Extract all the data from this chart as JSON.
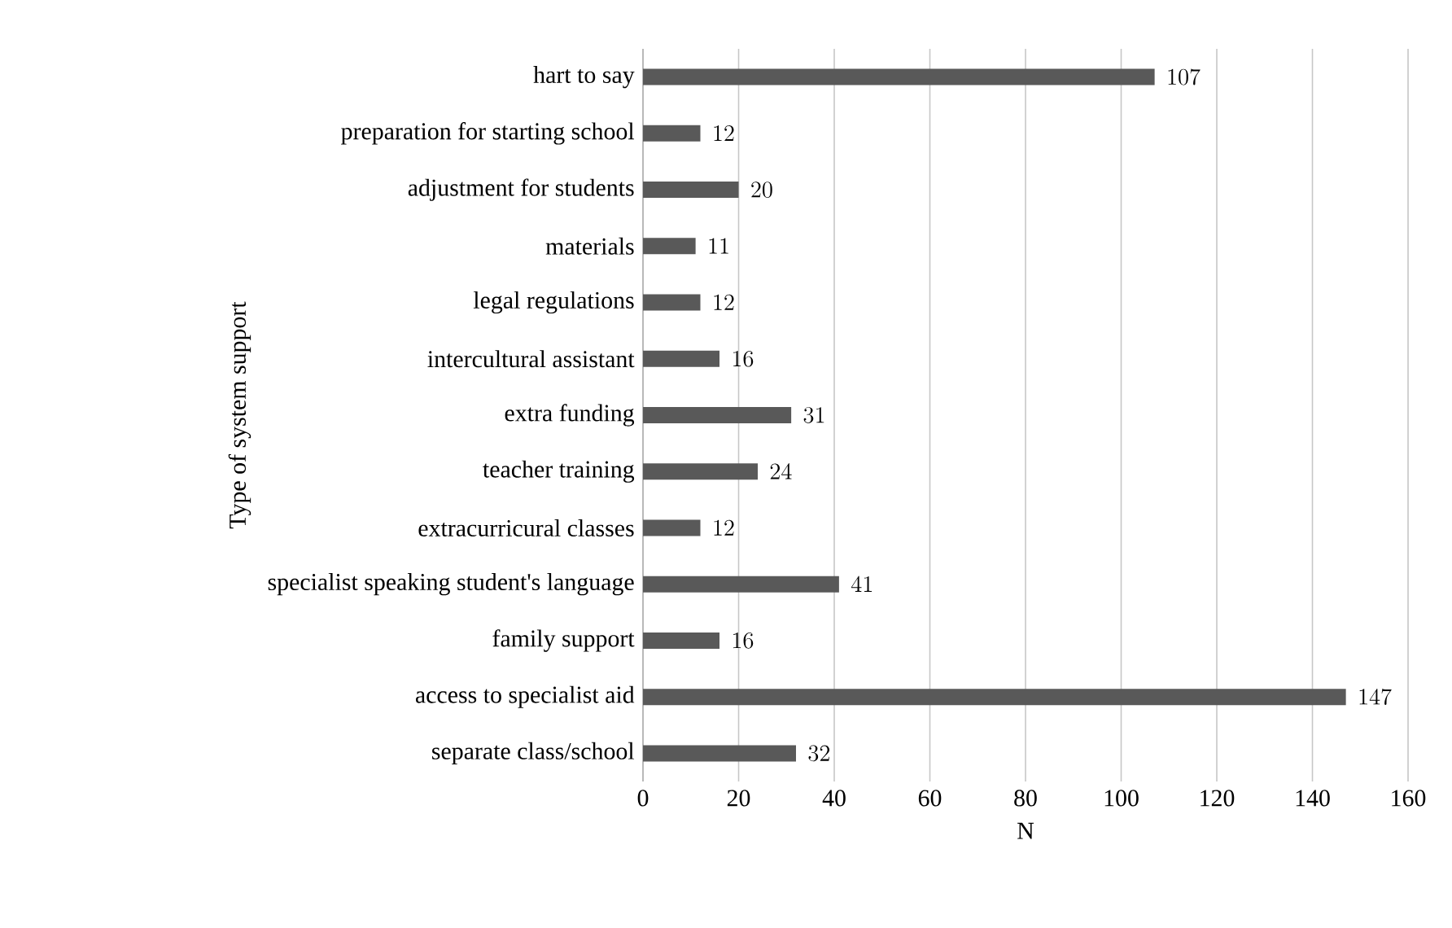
{
  "chart_data": {
    "type": "bar",
    "orientation": "horizontal",
    "xlabel": "N",
    "ylabel": "Type of system support",
    "categories": [
      "hart to say",
      "preparation for starting school",
      "adjustment for students",
      "materials",
      "legal regulations",
      "intercultural assistant",
      "extra funding",
      "teacher training",
      "extracurricural classes",
      "specialist speaking student's language",
      "family support",
      "access to specialist aid",
      "separate class/school"
    ],
    "values": [
      107,
      12,
      20,
      11,
      12,
      16,
      31,
      24,
      12,
      41,
      16,
      147,
      32
    ],
    "color": "#595959",
    "xlim": [
      0,
      160
    ],
    "xticks": [
      0,
      20,
      40,
      60,
      80,
      100,
      120,
      140,
      160
    ],
    "grid": "x",
    "data_labels": true
  }
}
